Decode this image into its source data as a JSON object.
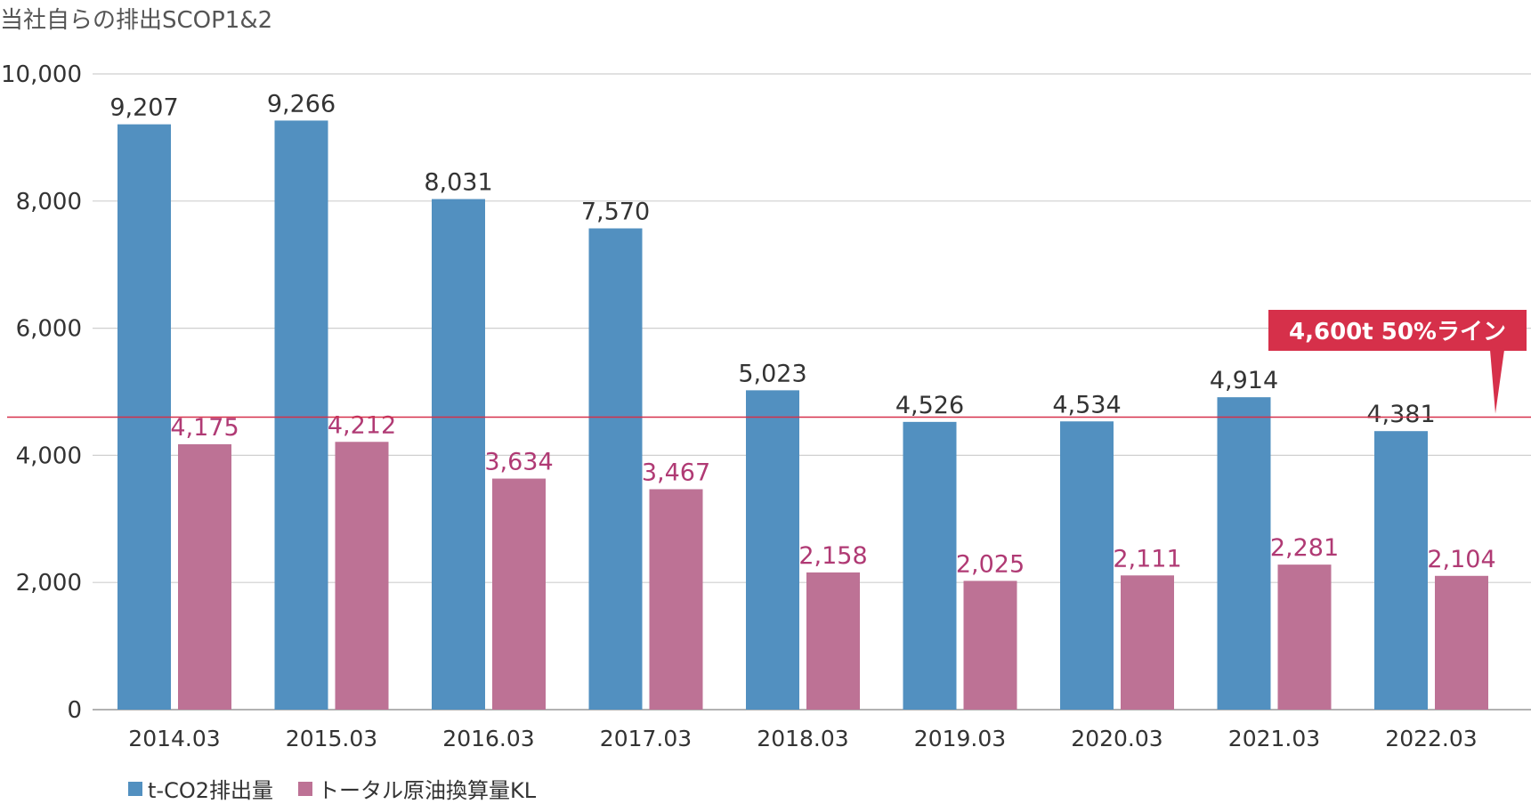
{
  "chart_data": {
    "type": "bar",
    "title": "当社自らの排出SCOP1&2",
    "categories": [
      "2014.03",
      "2015.03",
      "2016.03",
      "2017.03",
      "2018.03",
      "2019.03",
      "2020.03",
      "2021.03",
      "2022.03"
    ],
    "series": [
      {
        "name": "t-CO2排出量",
        "color": "#5290c0",
        "values": [
          9207,
          9266,
          8031,
          7570,
          5023,
          4526,
          4534,
          4914,
          4381
        ],
        "labels": [
          "9,207",
          "9,266",
          "8,031",
          "7,570",
          "5,023",
          "4,526",
          "4,534",
          "4,914",
          "4,381"
        ]
      },
      {
        "name": "トータル原油換算量KL",
        "color": "#bd7295",
        "values": [
          4175,
          4212,
          3634,
          3467,
          2158,
          2025,
          2111,
          2281,
          2104
        ],
        "labels": [
          "4,175",
          "4,212",
          "3,634",
          "3,467",
          "2,158",
          "2,025",
          "2,111",
          "2,281",
          "2,104"
        ]
      }
    ],
    "ylim": [
      0,
      10000
    ],
    "yticks": [
      0,
      2000,
      4000,
      6000,
      8000,
      10000
    ],
    "ytick_labels": [
      "0",
      "2,000",
      "4,000",
      "6,000",
      "8,000",
      "10,000"
    ],
    "grid": true,
    "legend_position": "bottom-left",
    "reference_line": {
      "value": 4600,
      "label": "4,600t 50%ライン",
      "color": "#d6304a"
    }
  }
}
